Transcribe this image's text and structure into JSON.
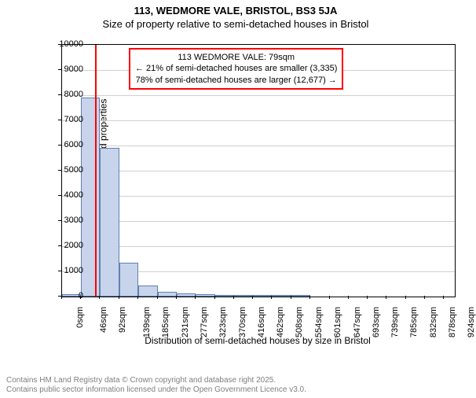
{
  "title": "113, WEDMORE VALE, BRISTOL, BS3 5JA",
  "subtitle": "Size of property relative to semi-detached houses in Bristol",
  "ylabel": "Number of semi-detached properties",
  "xlabel": "Distribution of semi-detached houses by size in Bristol",
  "ylim": [
    0,
    10000
  ],
  "ytick_step": 1000,
  "bar_fill": "#c7d4ec",
  "bar_border": "#6080b0",
  "grid_color": "#d0d0d0",
  "marker_color": "#ff0000",
  "marker_x": 79,
  "annotation": {
    "line1": "113 WEDMORE VALE: 79sqm",
    "line2": "← 21% of semi-detached houses are smaller (3,335)",
    "line3": "78% of semi-detached houses are larger (12,677) →"
  },
  "x_ticks": [
    0,
    46,
    92,
    139,
    185,
    231,
    277,
    323,
    370,
    416,
    462,
    508,
    554,
    601,
    647,
    693,
    739,
    785,
    832,
    878,
    924
  ],
  "x_tick_suffix": "sqm",
  "x_max": 950,
  "bars": [
    {
      "x0": 0,
      "x1": 46,
      "y": 100
    },
    {
      "x0": 46,
      "x1": 92,
      "y": 7900
    },
    {
      "x0": 92,
      "x1": 139,
      "y": 5900
    },
    {
      "x0": 139,
      "x1": 185,
      "y": 1350
    },
    {
      "x0": 185,
      "x1": 231,
      "y": 450
    },
    {
      "x0": 231,
      "x1": 277,
      "y": 200
    },
    {
      "x0": 277,
      "x1": 323,
      "y": 120
    },
    {
      "x0": 323,
      "x1": 370,
      "y": 80
    },
    {
      "x0": 370,
      "x1": 416,
      "y": 30
    },
    {
      "x0": 416,
      "x1": 462,
      "y": 20
    },
    {
      "x0": 462,
      "x1": 508,
      "y": 10
    },
    {
      "x0": 508,
      "x1": 554,
      "y": 10
    },
    {
      "x0": 554,
      "x1": 601,
      "y": 5
    }
  ],
  "footer_line1": "Contains HM Land Registry data © Crown copyright and database right 2025.",
  "footer_line2": "Contains public sector information licensed under the Open Government Licence v3.0."
}
